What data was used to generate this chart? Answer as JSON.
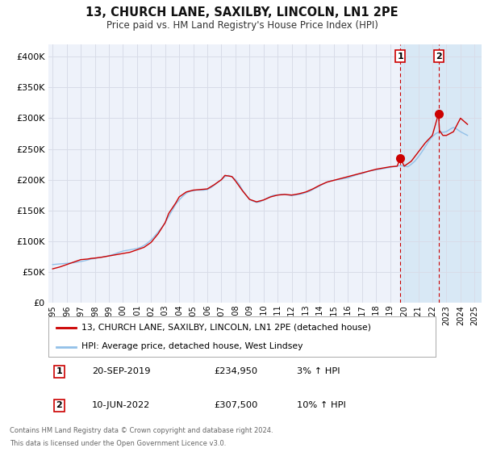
{
  "title": "13, CHURCH LANE, SAXILBY, LINCOLN, LN1 2PE",
  "subtitle": "Price paid vs. HM Land Registry's House Price Index (HPI)",
  "background_color": "#ffffff",
  "plot_bg_color": "#eef2fa",
  "grid_color": "#d8dce8",
  "highlight_bg": "#d8e8f5",
  "ylim": [
    0,
    420000
  ],
  "yticks": [
    0,
    50000,
    100000,
    150000,
    200000,
    250000,
    300000,
    350000,
    400000
  ],
  "ytick_labels": [
    "£0",
    "£50K",
    "£100K",
    "£150K",
    "£200K",
    "£250K",
    "£300K",
    "£350K",
    "£400K"
  ],
  "xlim_start": 1994.7,
  "xlim_end": 2025.5,
  "xtick_years": [
    1995,
    1996,
    1997,
    1998,
    1999,
    2000,
    2001,
    2002,
    2003,
    2004,
    2005,
    2006,
    2007,
    2008,
    2009,
    2010,
    2011,
    2012,
    2013,
    2014,
    2015,
    2016,
    2017,
    2018,
    2019,
    2020,
    2021,
    2022,
    2023,
    2024,
    2025
  ],
  "sale1_x": 2019.72,
  "sale1_y": 234950,
  "sale2_x": 2022.44,
  "sale2_y": 307500,
  "line1_color": "#cc0000",
  "line2_color": "#92c0e8",
  "sale_marker_color": "#cc0000",
  "sale_marker_size": 7,
  "vline_color": "#cc0000",
  "legend1_label": "13, CHURCH LANE, SAXILBY, LINCOLN, LN1 2PE (detached house)",
  "legend2_label": "HPI: Average price, detached house, West Lindsey",
  "table_row1": [
    "1",
    "20-SEP-2019",
    "£234,950",
    "3% ↑ HPI"
  ],
  "table_row2": [
    "2",
    "10-JUN-2022",
    "£307,500",
    "10% ↑ HPI"
  ],
  "footer1": "Contains HM Land Registry data © Crown copyright and database right 2024.",
  "footer2": "This data is licensed under the Open Government Licence v3.0.",
  "hpi_data_x": [
    1995.0,
    1995.25,
    1995.5,
    1995.75,
    1996.0,
    1996.25,
    1996.5,
    1996.75,
    1997.0,
    1997.25,
    1997.5,
    1997.75,
    1998.0,
    1998.25,
    1998.5,
    1998.75,
    1999.0,
    1999.25,
    1999.5,
    1999.75,
    2000.0,
    2000.25,
    2000.5,
    2000.75,
    2001.0,
    2001.25,
    2001.5,
    2001.75,
    2002.0,
    2002.25,
    2002.5,
    2002.75,
    2003.0,
    2003.25,
    2003.5,
    2003.75,
    2004.0,
    2004.25,
    2004.5,
    2004.75,
    2005.0,
    2005.25,
    2005.5,
    2005.75,
    2006.0,
    2006.25,
    2006.5,
    2006.75,
    2007.0,
    2007.25,
    2007.5,
    2007.75,
    2008.0,
    2008.25,
    2008.5,
    2008.75,
    2009.0,
    2009.25,
    2009.5,
    2009.75,
    2010.0,
    2010.25,
    2010.5,
    2010.75,
    2011.0,
    2011.25,
    2011.5,
    2011.75,
    2012.0,
    2012.25,
    2012.5,
    2012.75,
    2013.0,
    2013.25,
    2013.5,
    2013.75,
    2014.0,
    2014.25,
    2014.5,
    2014.75,
    2015.0,
    2015.25,
    2015.5,
    2015.75,
    2016.0,
    2016.25,
    2016.5,
    2016.75,
    2017.0,
    2017.25,
    2017.5,
    2017.75,
    2018.0,
    2018.25,
    2018.5,
    2018.75,
    2019.0,
    2019.25,
    2019.5,
    2019.75,
    2020.0,
    2020.25,
    2020.5,
    2020.75,
    2021.0,
    2021.25,
    2021.5,
    2021.75,
    2022.0,
    2022.25,
    2022.5,
    2022.75,
    2023.0,
    2023.25,
    2023.5,
    2023.75,
    2024.0,
    2024.25,
    2024.5
  ],
  "hpi_data_y": [
    62000,
    62500,
    63000,
    63500,
    64000,
    64500,
    65000,
    66000,
    67000,
    68000,
    69500,
    71000,
    72000,
    73000,
    74000,
    75000,
    76500,
    78000,
    80000,
    82000,
    84000,
    85000,
    86000,
    87000,
    88000,
    90000,
    93000,
    97000,
    102000,
    108000,
    115000,
    122000,
    130000,
    140000,
    150000,
    160000,
    167000,
    173000,
    178000,
    181000,
    182000,
    183000,
    183000,
    183000,
    184000,
    187000,
    191000,
    196000,
    200000,
    205000,
    207000,
    205000,
    200000,
    193000,
    183000,
    175000,
    168000,
    165000,
    163000,
    164000,
    167000,
    170000,
    173000,
    175000,
    175000,
    176000,
    176000,
    175000,
    174000,
    175000,
    176000,
    177000,
    179000,
    181000,
    184000,
    187000,
    190000,
    193000,
    196000,
    198000,
    199000,
    200000,
    201000,
    202000,
    203000,
    205000,
    207000,
    209000,
    210000,
    212000,
    214000,
    215000,
    216000,
    217000,
    218000,
    219000,
    220000,
    221000,
    222000,
    223000,
    222000,
    221000,
    225000,
    230000,
    237000,
    245000,
    254000,
    263000,
    270000,
    275000,
    278000,
    277000,
    278000,
    282000,
    285000,
    282000,
    278000,
    275000,
    272000
  ],
  "price_data_x": [
    1995.0,
    1995.5,
    1996.0,
    1996.5,
    1997.0,
    1997.5,
    1997.75,
    1998.0,
    1998.5,
    1999.0,
    1999.5,
    2000.0,
    2000.5,
    2001.0,
    2001.5,
    2002.0,
    2002.5,
    2003.0,
    2003.25,
    2003.75,
    2004.0,
    2004.5,
    2005.0,
    2005.5,
    2006.0,
    2006.5,
    2007.0,
    2007.25,
    2007.75,
    2008.0,
    2008.5,
    2009.0,
    2009.5,
    2010.0,
    2010.5,
    2011.0,
    2011.5,
    2012.0,
    2012.5,
    2013.0,
    2013.5,
    2014.0,
    2014.5,
    2015.0,
    2015.5,
    2016.0,
    2016.5,
    2017.0,
    2017.5,
    2018.0,
    2018.5,
    2019.0,
    2019.5,
    2019.72,
    2020.0,
    2020.5,
    2021.0,
    2021.5,
    2022.0,
    2022.44,
    2022.5,
    2022.75,
    2023.0,
    2023.5,
    2024.0,
    2024.5
  ],
  "price_data_y": [
    55000,
    58000,
    62000,
    66000,
    70000,
    71000,
    72000,
    72500,
    74000,
    76000,
    78000,
    80000,
    82000,
    86000,
    90000,
    98000,
    112000,
    130000,
    145000,
    162000,
    172000,
    180000,
    183000,
    184000,
    185000,
    192000,
    200000,
    207000,
    205000,
    198000,
    182000,
    168000,
    164000,
    167000,
    172000,
    175000,
    176000,
    175000,
    177000,
    180000,
    185000,
    191000,
    196000,
    199000,
    202000,
    205000,
    208000,
    211000,
    214000,
    217000,
    219000,
    221000,
    222000,
    234950,
    222000,
    230000,
    245000,
    260000,
    272000,
    307500,
    280000,
    272000,
    272000,
    278000,
    300000,
    290000
  ]
}
